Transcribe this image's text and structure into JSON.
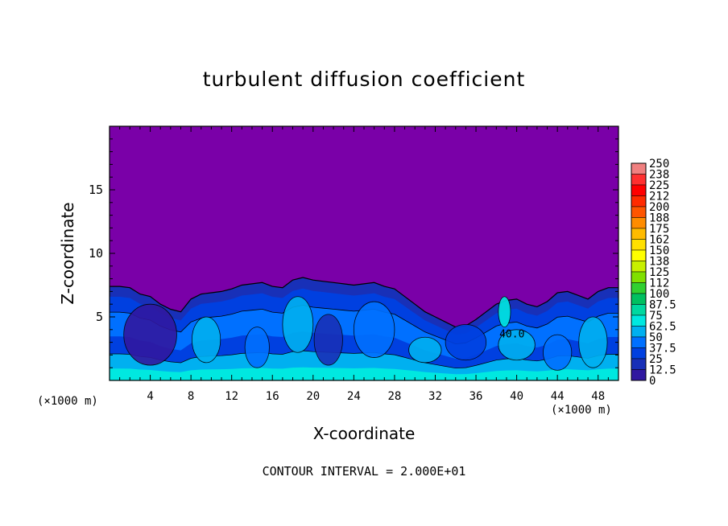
{
  "chart_data": {
    "type": "heatmap",
    "title": "turbulent diffusion coefficient",
    "xlabel": "X-coordinate",
    "ylabel": "Z-coordinate",
    "x_unit_label": "(×1000 m)",
    "xlim": [
      0,
      50
    ],
    "ylim": [
      0,
      20
    ],
    "xticks": [
      "4",
      "8",
      "12",
      "16",
      "20",
      "24",
      "28",
      "32",
      "36",
      "40",
      "44",
      "48"
    ],
    "yticks": [
      "5",
      "10",
      "15"
    ],
    "contour_note": "CONTOUR INTERVAL = 2.000E+01",
    "contour_label": "40.0",
    "colorbar": {
      "labels": [
        "250",
        "238",
        "225",
        "212",
        "200",
        "188",
        "175",
        "162",
        "150",
        "138",
        "125",
        "112",
        "100",
        "87.5",
        "75",
        "62.5",
        "50",
        "37.5",
        "25",
        "12.5",
        "0"
      ],
      "colors": [
        "#f08080",
        "#ff3030",
        "#ff0000",
        "#ff2a00",
        "#ff5500",
        "#ff8c00",
        "#ffbb00",
        "#ffe000",
        "#ffff00",
        "#c8f000",
        "#80e000",
        "#30d030",
        "#00c060",
        "#00d8a0",
        "#00e8e0",
        "#00b0f0",
        "#0070ff",
        "#0040e0",
        "#1830b8",
        "#3018a0",
        "#7a00a8"
      ]
    },
    "boundary_layer_top_km": [
      7.4,
      7.4,
      7.3,
      6.8,
      6.6,
      6.0,
      5.6,
      5.4,
      6.4,
      6.8,
      6.9,
      7.0,
      7.2,
      7.5,
      7.6,
      7.7,
      7.4,
      7.3,
      7.9,
      8.1,
      7.9,
      7.8,
      7.7,
      7.6,
      7.5,
      7.6,
      7.7,
      7.4,
      7.2,
      6.6,
      6.0,
      5.4,
      5.0,
      4.6,
      4.2,
      4.3,
      4.8,
      5.4,
      6.0,
      6.3,
      6.4,
      6.0,
      5.8,
      6.2,
      6.9,
      7.0,
      6.7,
      6.4,
      7.0,
      7.3,
      7.3
    ]
  }
}
